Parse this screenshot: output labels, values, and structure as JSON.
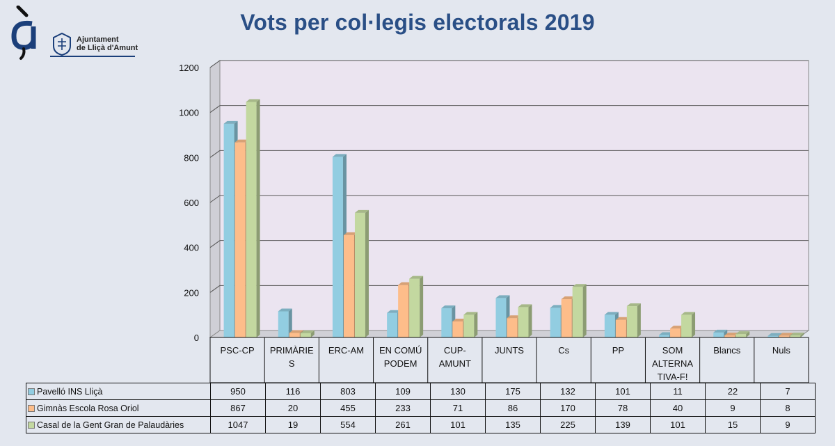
{
  "header": {
    "logo_text_line1": "Ajuntament",
    "logo_text_line2": "de Lliçà d'Amunt",
    "logo_glyph": "à"
  },
  "colors": {
    "background": "#e3e7ef",
    "plot_area": "#ebe4f0",
    "title": "#2a4f86",
    "series": [
      "#92cde1",
      "#fdbd8a",
      "#c3d8a0"
    ]
  },
  "chart_data": {
    "type": "bar",
    "title": "Vots per col·legis electorals 2019",
    "categories": [
      "PSC-CP",
      "PRIMÀRIES",
      "ERC-AM",
      "EN COMÚ PODEM",
      "CUP-AMUNT",
      "JUNTS",
      "Cs",
      "PP",
      "SOM ALTERNATIVA-F!",
      "Blancs",
      "Nuls"
    ],
    "category_lines": [
      [
        "PSC-CP"
      ],
      [
        "PRIMÀRIE",
        "S"
      ],
      [
        "ERC-AM"
      ],
      [
        "EN COMÚ",
        "PODEM"
      ],
      [
        "CUP-",
        "AMUNT"
      ],
      [
        "JUNTS"
      ],
      [
        "Cs"
      ],
      [
        "PP"
      ],
      [
        "SOM",
        "ALTERNA",
        "TIVA-F!"
      ],
      [
        "Blancs"
      ],
      [
        "Nuls"
      ]
    ],
    "series": [
      {
        "name": "Pavelló INS Lliçà",
        "values": [
          950,
          116,
          803,
          109,
          130,
          175,
          132,
          101,
          11,
          22,
          7
        ]
      },
      {
        "name": "Gimnàs Escola Rosa Oriol",
        "values": [
          867,
          20,
          455,
          233,
          71,
          86,
          170,
          78,
          40,
          9,
          8
        ]
      },
      {
        "name": "Casal de la Gent Gran de Palaudàries",
        "values": [
          1047,
          19,
          554,
          261,
          101,
          135,
          225,
          139,
          101,
          15,
          9
        ]
      }
    ],
    "ylim": [
      0,
      1200
    ],
    "yticks": [
      "0",
      "200",
      "400",
      "600",
      "800",
      "1000",
      "1200"
    ],
    "grid": true,
    "legend": "data-table"
  }
}
